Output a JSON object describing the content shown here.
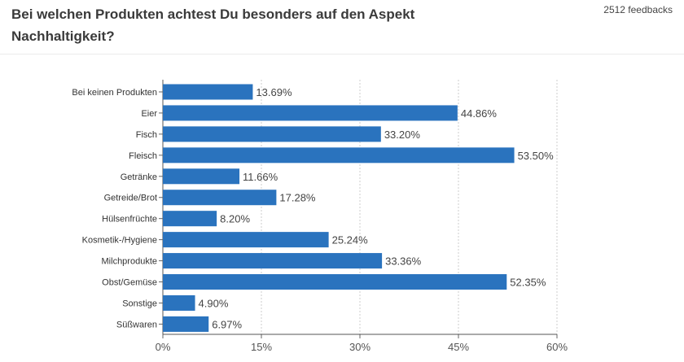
{
  "header": {
    "title": "Bei welchen Produkten achtest Du besonders auf den Aspekt Nachhaltigkeit?",
    "feedbacks": "2512 feedbacks"
  },
  "chart_data": {
    "type": "bar",
    "orientation": "horizontal",
    "categories": [
      "Bei keinen Produkten",
      "Eier",
      "Fisch",
      "Fleisch",
      "Getränke",
      "Getreide/Brot",
      "Hülsenfrüchte",
      "Kosmetik-/Hygiene",
      "Milchprodukte",
      "Obst/Gemüse",
      "Sonstige",
      "Süßwaren"
    ],
    "values": [
      13.69,
      44.86,
      33.2,
      53.5,
      11.66,
      17.28,
      8.2,
      25.24,
      33.36,
      52.35,
      4.9,
      6.97
    ],
    "value_labels": [
      "13.69%",
      "44.86%",
      "33.20%",
      "53.50%",
      "11.66%",
      "17.28%",
      "8.20%",
      "25.24%",
      "33.36%",
      "52.35%",
      "4.90%",
      "6.97%"
    ],
    "xlim": [
      0,
      60
    ],
    "xticks": [
      0,
      15,
      30,
      45,
      60
    ],
    "xtick_labels": [
      "0%",
      "15%",
      "30%",
      "45%",
      "60%"
    ],
    "grid": true,
    "bar_color": "#2a73be"
  }
}
